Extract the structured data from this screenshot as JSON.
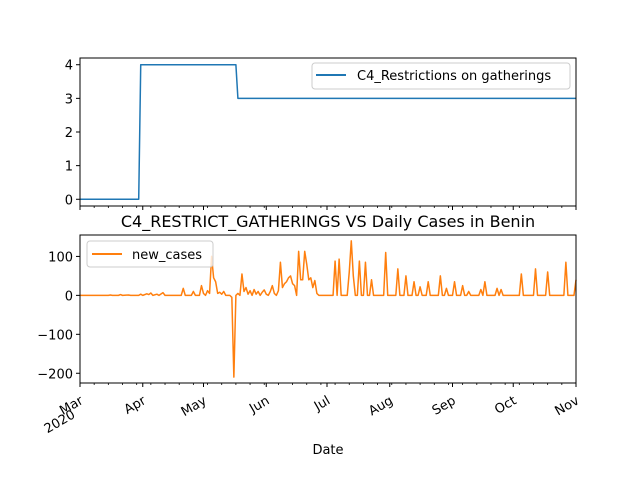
{
  "chart_data": [
    {
      "type": "line",
      "title": "",
      "xlabel": "",
      "ylabel": "",
      "x_range": [
        "2020-03-01",
        "2020-11-01"
      ],
      "ylim": [
        -0.2,
        4.2
      ],
      "yticks": [
        "0",
        "1",
        "2",
        "3",
        "4"
      ],
      "legend": "top-right",
      "grid": false,
      "series": [
        {
          "name": "C4_Restrictions on gatherings",
          "color": "#1f77b4",
          "points": [
            [
              "2020-03-01",
              0
            ],
            [
              "2020-03-30",
              0
            ],
            [
              "2020-03-31",
              4
            ],
            [
              "2020-05-17",
              4
            ],
            [
              "2020-05-18",
              3
            ],
            [
              "2020-11-01",
              3
            ]
          ]
        }
      ]
    },
    {
      "type": "line",
      "title": "C4_RESTRICT_GATHERINGS VS Daily Cases in Benin",
      "xlabel": "Date",
      "ylabel": "",
      "x_range": [
        "2020-03-01",
        "2020-11-01"
      ],
      "ylim": [
        -225,
        155
      ],
      "yticks": [
        "100",
        "0",
        "−100",
        "−200"
      ],
      "xticks": [
        {
          "label": "Mar",
          "sub": "2020",
          "date": "2020-03-01"
        },
        {
          "label": "Apr",
          "sub": "",
          "date": "2020-04-01"
        },
        {
          "label": "May",
          "sub": "",
          "date": "2020-05-01"
        },
        {
          "label": "Jun",
          "sub": "",
          "date": "2020-06-01"
        },
        {
          "label": "Jul",
          "sub": "",
          "date": "2020-07-01"
        },
        {
          "label": "Aug",
          "sub": "",
          "date": "2020-08-01"
        },
        {
          "label": "Sep",
          "sub": "",
          "date": "2020-09-01"
        },
        {
          "label": "Oct",
          "sub": "",
          "date": "2020-10-01"
        },
        {
          "label": "Nov",
          "sub": "",
          "date": "2020-11-01"
        }
      ],
      "legend": "top-left",
      "grid": false,
      "series": [
        {
          "name": "new_cases",
          "color": "#ff7f0e",
          "points": [
            [
              "2020-03-01",
              0
            ],
            [
              "2020-03-15",
              0
            ],
            [
              "2020-03-16",
              1
            ],
            [
              "2020-03-17",
              0
            ],
            [
              "2020-03-20",
              0
            ],
            [
              "2020-03-21",
              2
            ],
            [
              "2020-03-22",
              0
            ],
            [
              "2020-03-25",
              1
            ],
            [
              "2020-03-26",
              0
            ],
            [
              "2020-03-30",
              0
            ],
            [
              "2020-03-31",
              3
            ],
            [
              "2020-04-01",
              0
            ],
            [
              "2020-04-03",
              4
            ],
            [
              "2020-04-04",
              2
            ],
            [
              "2020-04-05",
              6
            ],
            [
              "2020-04-06",
              0
            ],
            [
              "2020-04-08",
              3
            ],
            [
              "2020-04-09",
              0
            ],
            [
              "2020-04-11",
              7
            ],
            [
              "2020-04-12",
              0
            ],
            [
              "2020-04-20",
              0
            ],
            [
              "2020-04-21",
              18
            ],
            [
              "2020-04-22",
              0
            ],
            [
              "2020-04-25",
              0
            ],
            [
              "2020-04-26",
              10
            ],
            [
              "2020-04-27",
              0
            ],
            [
              "2020-04-29",
              0
            ],
            [
              "2020-04-30",
              25
            ],
            [
              "2020-05-01",
              5
            ],
            [
              "2020-05-02",
              0
            ],
            [
              "2020-05-03",
              12
            ],
            [
              "2020-05-04",
              5
            ],
            [
              "2020-05-05",
              100
            ],
            [
              "2020-05-06",
              45
            ],
            [
              "2020-05-07",
              35
            ],
            [
              "2020-05-08",
              5
            ],
            [
              "2020-05-09",
              8
            ],
            [
              "2020-05-10",
              3
            ],
            [
              "2020-05-11",
              10
            ],
            [
              "2020-05-12",
              0
            ],
            [
              "2020-05-14",
              0
            ],
            [
              "2020-05-15",
              -5
            ],
            [
              "2020-05-16",
              -210
            ],
            [
              "2020-05-17",
              0
            ],
            [
              "2020-05-18",
              5
            ],
            [
              "2020-05-19",
              0
            ],
            [
              "2020-05-20",
              55
            ],
            [
              "2020-05-21",
              10
            ],
            [
              "2020-05-22",
              20
            ],
            [
              "2020-05-23",
              3
            ],
            [
              "2020-05-24",
              12
            ],
            [
              "2020-05-25",
              0
            ],
            [
              "2020-05-26",
              15
            ],
            [
              "2020-05-27",
              3
            ],
            [
              "2020-05-28",
              10
            ],
            [
              "2020-05-29",
              0
            ],
            [
              "2020-05-30",
              8
            ],
            [
              "2020-05-31",
              14
            ],
            [
              "2020-06-01",
              3
            ],
            [
              "2020-06-02",
              0
            ],
            [
              "2020-06-03",
              10
            ],
            [
              "2020-06-04",
              25
            ],
            [
              "2020-06-05",
              5
            ],
            [
              "2020-06-06",
              0
            ],
            [
              "2020-06-07",
              12
            ],
            [
              "2020-06-08",
              85
            ],
            [
              "2020-06-09",
              20
            ],
            [
              "2020-06-10",
              30
            ],
            [
              "2020-06-11",
              35
            ],
            [
              "2020-06-12",
              45
            ],
            [
              "2020-06-13",
              50
            ],
            [
              "2020-06-14",
              30
            ],
            [
              "2020-06-15",
              25
            ],
            [
              "2020-06-16",
              0
            ],
            [
              "2020-06-17",
              113
            ],
            [
              "2020-06-18",
              40
            ],
            [
              "2020-06-19",
              40
            ],
            [
              "2020-06-20",
              113
            ],
            [
              "2020-06-21",
              80
            ],
            [
              "2020-06-22",
              40
            ],
            [
              "2020-06-23",
              45
            ],
            [
              "2020-06-24",
              20
            ],
            [
              "2020-06-25",
              38
            ],
            [
              "2020-06-26",
              5
            ],
            [
              "2020-06-27",
              0
            ],
            [
              "2020-07-04",
              0
            ],
            [
              "2020-07-05",
              88
            ],
            [
              "2020-07-06",
              0
            ],
            [
              "2020-07-07",
              93
            ],
            [
              "2020-07-08",
              0
            ],
            [
              "2020-07-11",
              0
            ],
            [
              "2020-07-12",
              60
            ],
            [
              "2020-07-13",
              140
            ],
            [
              "2020-07-14",
              50
            ],
            [
              "2020-07-15",
              0
            ],
            [
              "2020-07-16",
              0
            ],
            [
              "2020-07-17",
              88
            ],
            [
              "2020-07-18",
              0
            ],
            [
              "2020-07-19",
              0
            ],
            [
              "2020-07-20",
              85
            ],
            [
              "2020-07-21",
              0
            ],
            [
              "2020-07-22",
              0
            ],
            [
              "2020-07-23",
              40
            ],
            [
              "2020-07-24",
              0
            ],
            [
              "2020-07-29",
              0
            ],
            [
              "2020-07-30",
              110
            ],
            [
              "2020-07-31",
              0
            ],
            [
              "2020-08-04",
              0
            ],
            [
              "2020-08-05",
              68
            ],
            [
              "2020-08-06",
              0
            ],
            [
              "2020-08-08",
              0
            ],
            [
              "2020-08-09",
              50
            ],
            [
              "2020-08-10",
              0
            ],
            [
              "2020-08-12",
              0
            ],
            [
              "2020-08-13",
              35
            ],
            [
              "2020-08-14",
              0
            ],
            [
              "2020-08-15",
              0
            ],
            [
              "2020-08-16",
              22
            ],
            [
              "2020-08-17",
              0
            ],
            [
              "2020-08-19",
              0
            ],
            [
              "2020-08-20",
              35
            ],
            [
              "2020-08-21",
              0
            ],
            [
              "2020-08-25",
              0
            ],
            [
              "2020-08-26",
              50
            ],
            [
              "2020-08-27",
              0
            ],
            [
              "2020-08-28",
              0
            ],
            [
              "2020-08-29",
              18
            ],
            [
              "2020-08-30",
              0
            ],
            [
              "2020-09-01",
              0
            ],
            [
              "2020-09-02",
              35
            ],
            [
              "2020-09-03",
              0
            ],
            [
              "2020-09-05",
              0
            ],
            [
              "2020-09-06",
              25
            ],
            [
              "2020-09-07",
              0
            ],
            [
              "2020-09-08",
              0
            ],
            [
              "2020-09-09",
              10
            ],
            [
              "2020-09-10",
              0
            ],
            [
              "2020-09-14",
              0
            ],
            [
              "2020-09-15",
              15
            ],
            [
              "2020-09-16",
              0
            ],
            [
              "2020-09-17",
              35
            ],
            [
              "2020-09-18",
              0
            ],
            [
              "2020-09-22",
              0
            ],
            [
              "2020-09-23",
              18
            ],
            [
              "2020-09-24",
              0
            ],
            [
              "2020-09-25",
              15
            ],
            [
              "2020-09-26",
              0
            ],
            [
              "2020-10-04",
              0
            ],
            [
              "2020-10-05",
              55
            ],
            [
              "2020-10-06",
              0
            ],
            [
              "2020-10-11",
              0
            ],
            [
              "2020-10-12",
              68
            ],
            [
              "2020-10-13",
              0
            ],
            [
              "2020-10-17",
              0
            ],
            [
              "2020-10-18",
              60
            ],
            [
              "2020-10-19",
              0
            ],
            [
              "2020-10-26",
              0
            ],
            [
              "2020-10-27",
              85
            ],
            [
              "2020-10-28",
              0
            ],
            [
              "2020-10-31",
              0
            ],
            [
              "2020-11-01",
              40
            ]
          ]
        }
      ]
    }
  ]
}
